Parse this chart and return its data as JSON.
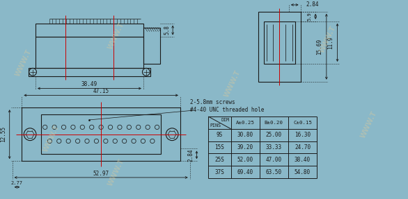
{
  "bg_color": "#8ab8c8",
  "line_color": "#1a1a1a",
  "red_line_color": "#cc0000",
  "dim_color": "#1a1a1a",
  "table": {
    "col_headers": [
      "A±0.25",
      "B±0.20",
      "C±0.15"
    ],
    "rows": [
      [
        "9S",
        "30.80",
        "25.00",
        "16.30"
      ],
      [
        "15S",
        "39.20",
        "33.33",
        "24.70"
      ],
      [
        "25S",
        "52.00",
        "47.00",
        "38.40"
      ],
      [
        "37S",
        "69.40",
        "63.50",
        "54.80"
      ]
    ]
  },
  "notes": [
    "2-5.8mm screws",
    "#4-40 UNC threaded hole"
  ],
  "dims_side": {
    "width_38": "38.49",
    "width_47": "47.15",
    "width_52": "52.97",
    "width_2_77": "2.77",
    "height_5_8": "5.8",
    "height_12_55": "12.55",
    "height_2_84": "2.84"
  },
  "dims_front": {
    "width_2_84": "2.84",
    "height_15_69": "15.69",
    "height_11_9": "11.9",
    "height_5_9": "5.9"
  }
}
